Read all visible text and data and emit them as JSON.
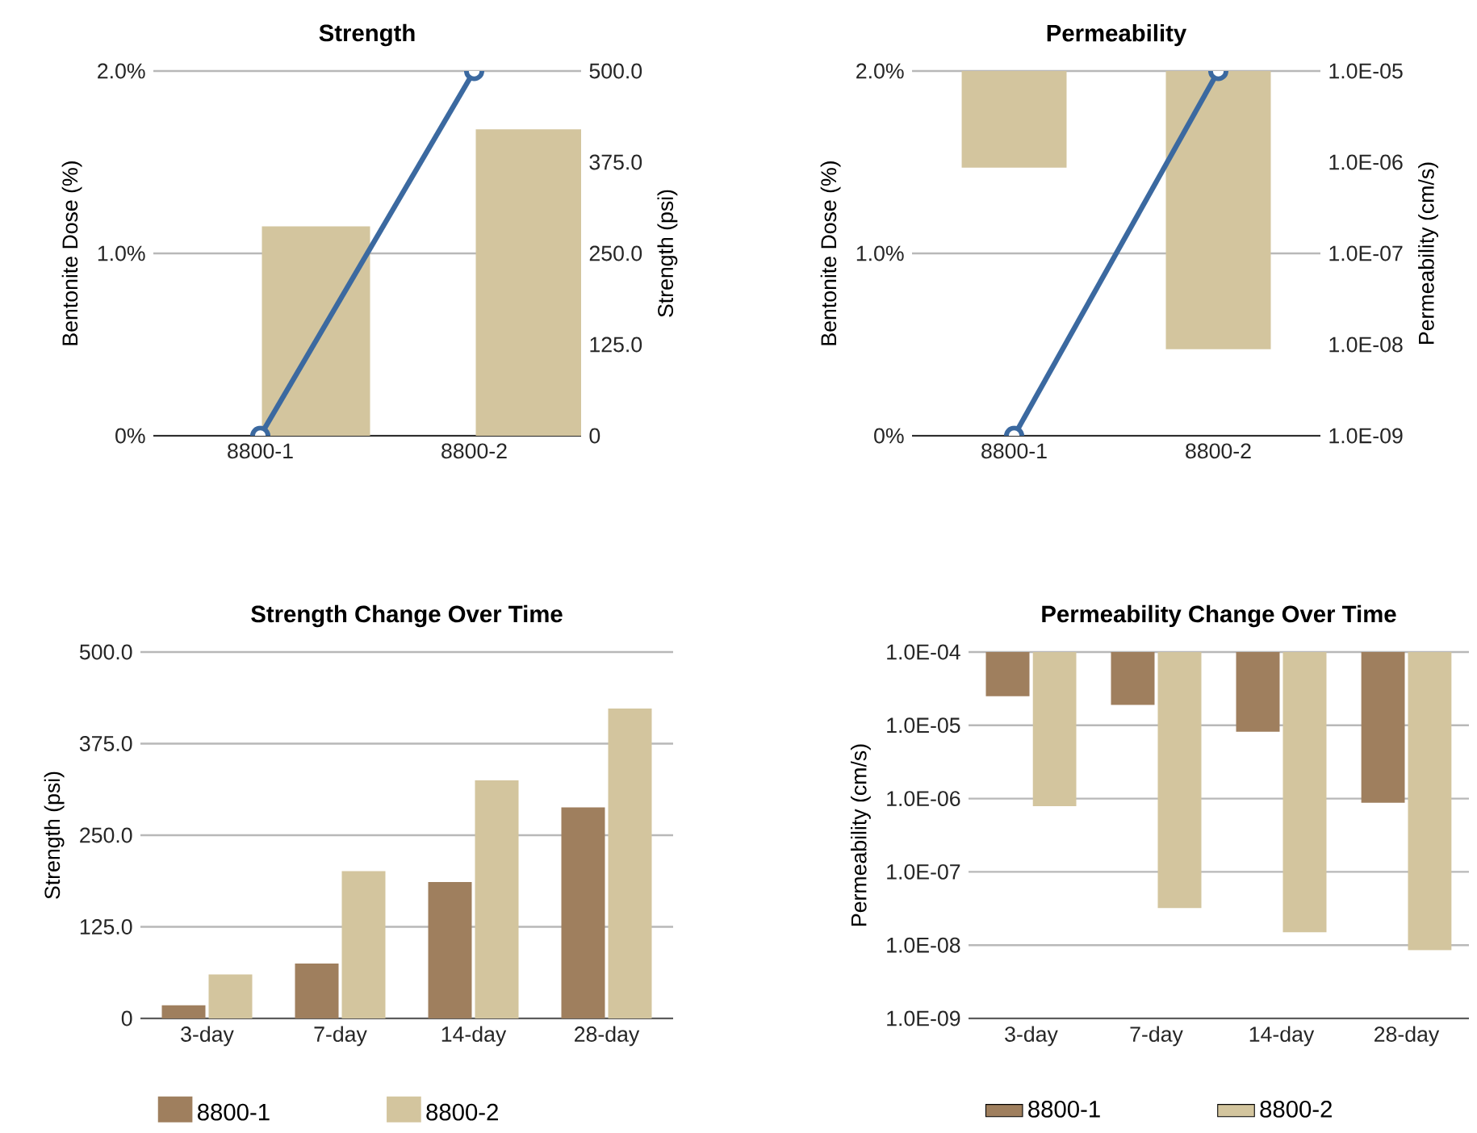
{
  "chart_data": [
    {
      "type": "bar",
      "title": "Strength",
      "categories": [
        "8800-1",
        "8800-2"
      ],
      "ylabel": "Bentonite Dose (%)",
      "y2label": "Strength (psi)",
      "ylim": [
        0,
        2
      ],
      "yticks": [
        {
          "value": 0,
          "label": "0%"
        },
        {
          "value": 1,
          "label": "1.0%"
        },
        {
          "value": 2,
          "label": "2.0%"
        }
      ],
      "y2lim": [
        0,
        500
      ],
      "y2ticks": [
        0,
        {
          "value": 125,
          "label": "125.0"
        },
        {
          "value": 250,
          "label": "250.0"
        },
        {
          "value": 375,
          "label": "375.0"
        },
        {
          "value": 500,
          "label": "500.0"
        }
      ],
      "grid": "y",
      "marker": "circle",
      "series": [
        {
          "type": "bar",
          "axis": "y2",
          "color": "#d3c59e",
          "values": [
            287,
            420
          ]
        },
        {
          "type": "line",
          "axis": "y",
          "color": "#3b69a0",
          "values": [
            0,
            2
          ]
        }
      ]
    },
    {
      "type": "bar",
      "title": "Permeability",
      "categories": [
        "8800-1",
        "8800-2"
      ],
      "ylabel": "Bentonite Dose (%)",
      "y2label": "Permeability (cm/s)",
      "ylim": [
        0,
        2
      ],
      "yticks": [
        {
          "value": 0,
          "label": "0%"
        },
        {
          "value": 1,
          "label": "1.0%"
        },
        {
          "value": 2,
          "label": "2.0%"
        }
      ],
      "y2lim": [
        1e-09,
        1e-05
      ],
      "y2ticks": [
        {
          "value": 1e-09,
          "label": "1.0E-09"
        },
        {
          "value": 1e-08,
          "label": "1.0E-08"
        },
        {
          "value": 1e-07,
          "label": "1.0E-07"
        },
        {
          "value": 1e-06,
          "label": "1.0E-06"
        },
        {
          "value": 1e-05,
          "label": "1.0E-05"
        }
      ],
      "log": "y2",
      "grid": "y",
      "marker": "circle",
      "series": [
        {
          "type": "bar",
          "axis": "y2",
          "color": "#d3c59e",
          "base": [
            1e-05,
            1e-05
          ],
          "values": [
            -9.13e-06,
            -9.9911e-06
          ]
        },
        {
          "type": "line",
          "axis": "y",
          "color": "#3b69a0",
          "values": [
            0,
            2
          ]
        }
      ]
    },
    {
      "type": "bar",
      "title": "Strength Change Over Time",
      "categories": [
        "3-day",
        "7-day",
        "14-day",
        "28-day"
      ],
      "ylabel": "Strength (psi)",
      "ylim": [
        0,
        500
      ],
      "yticks": [
        0,
        {
          "value": 125,
          "label": "125.0"
        },
        {
          "value": 250,
          "label": "250.0"
        },
        {
          "value": 375,
          "label": "375.0"
        },
        {
          "value": 500,
          "label": "500.0"
        }
      ],
      "grid": "y",
      "legend": "bottom",
      "series": [
        {
          "name": "8800-1",
          "color": "#9f7f5e",
          "values": [
            18,
            75,
            186,
            288
          ]
        },
        {
          "name": "8800-2",
          "color": "#d3c59e",
          "values": [
            60,
            201,
            325,
            423
          ]
        }
      ]
    },
    {
      "type": "bar",
      "title": "Permeability Change Over Time",
      "categories": [
        "3-day",
        "7-day",
        "14-day",
        "28-day"
      ],
      "ylabel": "Permeability (cm/s)",
      "ylim": [
        1e-09,
        0.0001
      ],
      "yticks": [
        {
          "value": 1e-09,
          "label": "1.0E-09"
        },
        {
          "value": 1e-08,
          "label": "1.0E-08"
        },
        {
          "value": 1e-07,
          "label": "1.0E-07"
        },
        {
          "value": 1e-06,
          "label": "1.0E-06"
        },
        {
          "value": 1e-05,
          "label": "1.0E-05"
        },
        {
          "value": 0.0001,
          "label": "1.0E-04"
        }
      ],
      "log": "y",
      "grid": "y",
      "legend": "bottom",
      "series": [
        {
          "name": "8800-1",
          "color": "#9f7f5e",
          "base": [
            0.0001,
            0.0001,
            0.0001,
            0.0001
          ],
          "values": [
            -7.5e-05,
            -8.1e-05,
            -9.18e-05,
            -9.912e-05
          ]
        },
        {
          "name": "8800-2",
          "color": "#d3c59e",
          "base": [
            0.0001,
            0.0001,
            0.0001,
            0.0001
          ],
          "values": [
            -9.921e-05,
            -9.9968e-05,
            -9.9985e-05,
            -9.99915e-05
          ]
        }
      ]
    }
  ]
}
